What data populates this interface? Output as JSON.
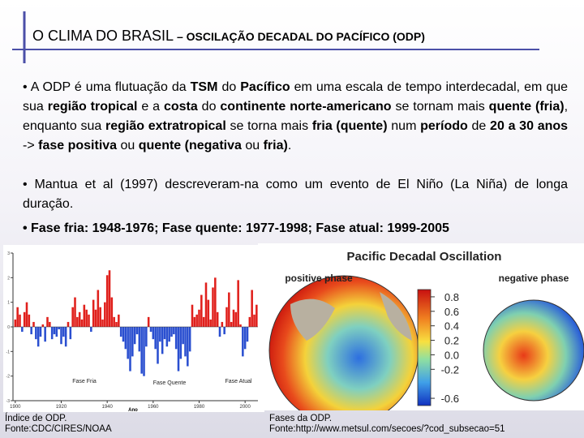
{
  "title": {
    "main": "O CLIMA DO BRASIL",
    "sub": " – OSCILAÇÃO DECADAL DO PACÍFICO (ODP)"
  },
  "paragraphs": [
    [
      {
        "text": "• A ODP é uma flutuação da ",
        "bold": false
      },
      {
        "text": "TSM",
        "bold": true
      },
      {
        "text": " do ",
        "bold": false
      },
      {
        "text": "Pacífico",
        "bold": true
      },
      {
        "text": " em uma escala de tempo interdecadal, em que sua ",
        "bold": false
      },
      {
        "text": "região tropical",
        "bold": true
      },
      {
        "text": " e a ",
        "bold": false
      },
      {
        "text": "costa",
        "bold": true
      },
      {
        "text": " do ",
        "bold": false
      },
      {
        "text": "continente norte-americano",
        "bold": true
      },
      {
        "text": " se tornam mais ",
        "bold": false
      },
      {
        "text": "quente (fria)",
        "bold": true
      },
      {
        "text": ", enquanto sua ",
        "bold": false
      },
      {
        "text": "região extratropical",
        "bold": true
      },
      {
        "text": " se torna mais ",
        "bold": false
      },
      {
        "text": "fria (quente)",
        "bold": true
      },
      {
        "text": " num ",
        "bold": false
      },
      {
        "text": "período",
        "bold": true
      },
      {
        "text": " de ",
        "bold": false
      },
      {
        "text": "20 a 30 anos",
        "bold": true
      },
      {
        "text": " -> ",
        "bold": false
      },
      {
        "text": "fase positiva",
        "bold": true
      },
      {
        "text": " ou ",
        "bold": false
      },
      {
        "text": "quente (negativa",
        "bold": true
      },
      {
        "text": " ou ",
        "bold": false
      },
      {
        "text": "fria)",
        "bold": true
      },
      {
        "text": ".",
        "bold": false
      }
    ],
    [
      {
        "text": "• Mantua et al (1997) descreveram-na como um evento de El Niño (La Niña) de longa duração.",
        "bold": false
      }
    ],
    [
      {
        "text": "• Fase fria: 1948-1976; Fase quente: 1977-1998; Fase atual: 1999-2005",
        "bold": true
      }
    ]
  ],
  "chart_data": {
    "type": "bar",
    "x_label": "Ano",
    "annotations": [
      "Fase Fria",
      "Fase Quente",
      "Fase Atual"
    ],
    "x": [
      1900,
      1901,
      1902,
      1903,
      1904,
      1905,
      1906,
      1907,
      1908,
      1909,
      1910,
      1911,
      1912,
      1913,
      1914,
      1915,
      1916,
      1917,
      1918,
      1919,
      1920,
      1921,
      1922,
      1923,
      1924,
      1925,
      1926,
      1927,
      1928,
      1929,
      1930,
      1931,
      1932,
      1933,
      1934,
      1935,
      1936,
      1937,
      1938,
      1939,
      1940,
      1941,
      1942,
      1943,
      1944,
      1945,
      1946,
      1947,
      1948,
      1949,
      1950,
      1951,
      1952,
      1953,
      1954,
      1955,
      1956,
      1957,
      1958,
      1959,
      1960,
      1961,
      1962,
      1963,
      1964,
      1965,
      1966,
      1967,
      1968,
      1969,
      1970,
      1971,
      1972,
      1973,
      1974,
      1975,
      1976,
      1977,
      1978,
      1979,
      1980,
      1981,
      1982,
      1983,
      1984,
      1985,
      1986,
      1987,
      1988,
      1989,
      1990,
      1991,
      1992,
      1993,
      1994,
      1995,
      1996,
      1997,
      1998,
      1999,
      2000,
      2001,
      2002,
      2003,
      2004,
      2005
    ],
    "values": [
      0.3,
      0.8,
      0.5,
      -0.2,
      0.6,
      1.0,
      0.5,
      -0.3,
      0.2,
      -0.5,
      -0.8,
      -0.4,
      0.1,
      -0.6,
      0.4,
      0.2,
      -0.5,
      -0.3,
      -0.4,
      -0.1,
      -0.7,
      -0.4,
      -0.8,
      0.2,
      -0.5,
      0.8,
      1.2,
      0.4,
      0.6,
      0.3,
      0.9,
      0.7,
      0.5,
      -0.2,
      1.1,
      0.7,
      1.5,
      0.8,
      0.3,
      1.0,
      2.1,
      2.3,
      1.2,
      0.4,
      0.2,
      0.5,
      -0.4,
      -0.6,
      -0.9,
      -1.3,
      -1.8,
      -1.2,
      -0.7,
      -0.3,
      -1.0,
      -1.9,
      -2.0,
      -0.8,
      0.4,
      -0.2,
      -0.5,
      -0.9,
      -1.5,
      -0.6,
      -1.1,
      -0.5,
      -0.8,
      -0.6,
      -0.4,
      -0.3,
      -0.9,
      -1.8,
      -1.3,
      -0.7,
      -1.2,
      -1.6,
      -1.0,
      0.9,
      0.4,
      0.5,
      0.7,
      1.3,
      0.4,
      1.8,
      1.1,
      0.3,
      1.6,
      2.0,
      0.6,
      -0.4,
      0.2,
      -0.3,
      0.8,
      1.4,
      0.2,
      0.7,
      0.6,
      1.9,
      0.1,
      -1.2,
      -0.9,
      -0.6,
      0.4,
      1.5,
      0.5,
      0.9
    ],
    "positive_color": "#e0201c",
    "negative_color": "#2a4fd0",
    "xlim": [
      1899,
      2007
    ],
    "xticks": [
      1900,
      1920,
      1940,
      1960,
      1980,
      2000
    ],
    "ylim": [
      -3,
      3
    ],
    "yticks": [
      -3,
      -2,
      -1,
      0,
      1,
      2,
      3
    ]
  },
  "maps": {
    "title": "Pacific Decadal Oscillation",
    "positive_label": "positive phase",
    "negative_label": "negative phase",
    "colorbar_lim": [
      -0.7,
      0.9
    ],
    "colorbar_ticks": [
      0.8,
      0.6,
      0.4,
      0.2,
      {
        "value": 0,
        "label": "0.0"
      },
      -0.2,
      -0.6
    ]
  },
  "captions": {
    "left": [
      "Índice de ODP.",
      "Fonte:CDC/CIRES/NOAA"
    ],
    "right": [
      "Fases da ODP.",
      "Fonte:http://www.metsul.com/secoes/?cod_subsecao=51"
    ]
  }
}
